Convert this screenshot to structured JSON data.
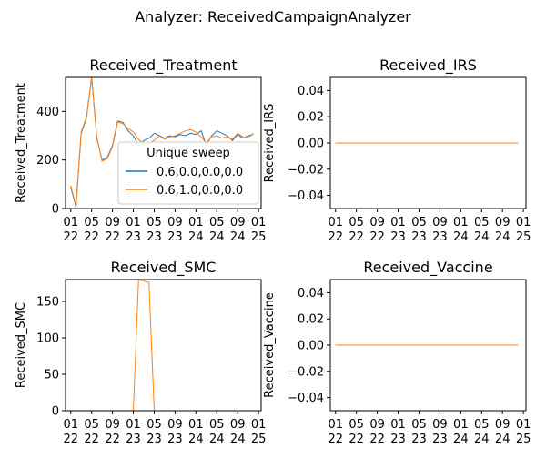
{
  "suptitle": "Analyzer: ReceivedCampaignAnalyzer",
  "legend": {
    "title": "Unique sweep",
    "entries": [
      {
        "label": "0.6,0.0,0.0,0.0",
        "color": "#1f77b4"
      },
      {
        "label": "0.6,1.0,0.0,0.0",
        "color": "#ff7f0e"
      }
    ]
  },
  "x_ticks": [
    {
      "top": "01",
      "bottom": "22"
    },
    {
      "top": "05",
      "bottom": "22"
    },
    {
      "top": "09",
      "bottom": "22"
    },
    {
      "top": "01",
      "bottom": "23"
    },
    {
      "top": "05",
      "bottom": "23"
    },
    {
      "top": "09",
      "bottom": "23"
    },
    {
      "top": "01",
      "bottom": "24"
    },
    {
      "top": "05",
      "bottom": "24"
    },
    {
      "top": "09",
      "bottom": "24"
    },
    {
      "top": "01",
      "bottom": "25"
    }
  ],
  "chart_data": [
    {
      "type": "line",
      "title": "Received_Treatment",
      "ylabel": "Received_Treatment",
      "xlim": [
        "2021-12-01",
        "2025-01-15"
      ],
      "ylim": [
        0,
        540
      ],
      "yticks": [
        0,
        200,
        400
      ],
      "legend": "lower-right",
      "x": [
        "2022-01",
        "2022-02",
        "2022-03",
        "2022-04",
        "2022-05",
        "2022-06",
        "2022-07",
        "2022-08",
        "2022-09",
        "2022-10",
        "2022-11",
        "2022-12",
        "2023-01",
        "2023-02",
        "2023-03",
        "2023-04",
        "2023-05",
        "2023-06",
        "2023-07",
        "2023-08",
        "2023-09",
        "2023-10",
        "2023-11",
        "2023-12",
        "2024-01",
        "2024-02",
        "2024-03",
        "2024-04",
        "2024-05",
        "2024-06",
        "2024-07",
        "2024-08",
        "2024-09",
        "2024-10",
        "2024-11",
        "2024-12"
      ],
      "series": [
        {
          "name": "0.6,0.0,0.0,0.0",
          "values": [
            90,
            5,
            310,
            370,
            540,
            290,
            200,
            210,
            260,
            360,
            355,
            320,
            300,
            260,
            280,
            290,
            310,
            300,
            290,
            300,
            295,
            305,
            300,
            310,
            305,
            320,
            260,
            300,
            320,
            310,
            300,
            280,
            305,
            290,
            300,
            305
          ]
        },
        {
          "name": "0.6,1.0,0.0,0.0",
          "values": [
            95,
            10,
            315,
            375,
            545,
            295,
            195,
            205,
            255,
            355,
            350,
            330,
            315,
            285,
            265,
            270,
            280,
            300,
            285,
            295,
            300,
            310,
            320,
            325,
            315,
            295,
            270,
            295,
            300,
            290,
            295,
            285,
            310,
            295,
            290,
            310
          ]
        }
      ]
    },
    {
      "type": "line",
      "title": "Received_IRS",
      "ylabel": "Received_IRS",
      "ylim": [
        -0.05,
        0.05
      ],
      "yticks": [
        "0.04",
        "0.02",
        "0.00",
        "−0.02",
        "−0.04"
      ],
      "x_range": [
        "2022-01",
        "2024-12"
      ],
      "series": [
        {
          "name": "0.6,0.0,0.0,0.0",
          "constant": 0
        },
        {
          "name": "0.6,1.0,0.0,0.0",
          "constant": 0
        }
      ]
    },
    {
      "type": "line",
      "title": "Received_SMC",
      "ylabel": "Received_SMC",
      "xlim": [
        "2021-12-01",
        "2025-01-15"
      ],
      "ylim": [
        0,
        180
      ],
      "yticks": [
        0,
        50,
        100,
        150
      ],
      "x": [
        "2022-01",
        "2022-02",
        "2022-03",
        "2022-04",
        "2022-05",
        "2022-06",
        "2022-07",
        "2022-08",
        "2022-09",
        "2022-10",
        "2022-11",
        "2022-12",
        "2023-01",
        "2023-02",
        "2023-03",
        "2023-04",
        "2023-05",
        "2023-06",
        "2023-07",
        "2023-08",
        "2023-09",
        "2023-10",
        "2023-11",
        "2023-12",
        "2024-01",
        "2024-02",
        "2024-03",
        "2024-04",
        "2024-05",
        "2024-06",
        "2024-07",
        "2024-08",
        "2024-09",
        "2024-10",
        "2024-11",
        "2024-12"
      ],
      "series": [
        {
          "name": "0.6,0.0,0.0,0.0",
          "values": [
            0,
            0,
            0,
            0,
            0,
            0,
            0,
            0,
            0,
            0,
            0,
            0,
            0,
            0,
            0,
            0,
            0,
            0,
            0,
            0,
            0,
            0,
            0,
            0,
            0,
            0,
            0,
            0,
            0,
            0,
            0,
            0,
            0,
            0,
            0,
            0
          ]
        },
        {
          "name": "0.6,1.0,0.0,0.0",
          "values": [
            0,
            0,
            0,
            0,
            0,
            0,
            0,
            0,
            0,
            0,
            0,
            0,
            0,
            182,
            178,
            176,
            0,
            0,
            0,
            0,
            0,
            0,
            0,
            0,
            0,
            0,
            0,
            0,
            0,
            0,
            0,
            0,
            0,
            0,
            0,
            0
          ]
        }
      ]
    },
    {
      "type": "line",
      "title": "Received_Vaccine",
      "ylabel": "Received_Vaccine",
      "ylim": [
        -0.05,
        0.05
      ],
      "yticks": [
        "0.04",
        "0.02",
        "0.00",
        "−0.02",
        "−0.04"
      ],
      "x_range": [
        "2022-01",
        "2024-12"
      ],
      "series": [
        {
          "name": "0.6,0.0,0.0,0.0",
          "constant": 0
        },
        {
          "name": "0.6,1.0,0.0,0.0",
          "constant": 0
        }
      ]
    }
  ]
}
